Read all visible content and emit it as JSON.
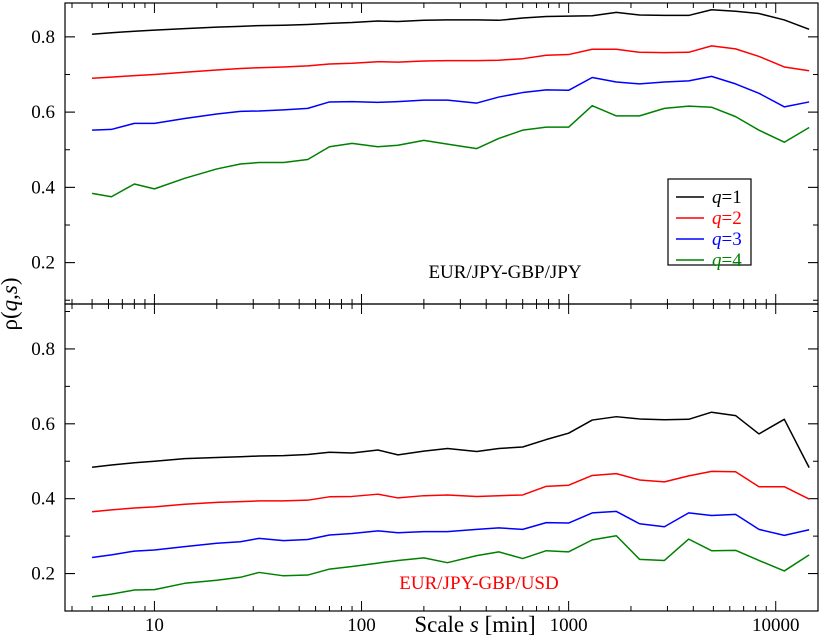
{
  "chart_data": [
    {
      "type": "line",
      "panel": "top",
      "annotation": "EUR/JPY-GBP/JPY",
      "annotation_color": "#000000",
      "xlabel_prefix": "Scale ",
      "xlabel_var": "s",
      "xlabel_suffix": " [min]",
      "ylabel_rho": "ρ(",
      "ylabel_q": "q",
      "ylabel_comma": ",",
      "ylabel_s": "s",
      "ylabel_close": ")",
      "xscale": "log",
      "xlim": [
        3.7,
        16000
      ],
      "ylim": [
        0.09,
        0.89
      ],
      "yticks": [
        0.2,
        0.4,
        0.6,
        0.8
      ],
      "ytick_labels": [
        "0.2",
        "0.4",
        "0.6",
        "0.8"
      ],
      "grid": false,
      "legend_position": "right-center",
      "x": [
        5,
        6.2,
        8,
        10,
        14,
        20,
        26,
        32,
        42,
        55,
        70,
        90,
        120,
        150,
        200,
        260,
        360,
        460,
        600,
        780,
        1000,
        1300,
        1700,
        2200,
        2900,
        3800,
        4900,
        6400,
        8300,
        11000,
        14500
      ],
      "series": [
        {
          "name_var": "q",
          "name_value": "=1",
          "color": "#000000",
          "values": [
            0.807,
            0.811,
            0.815,
            0.818,
            0.822,
            0.826,
            0.828,
            0.83,
            0.831,
            0.833,
            0.836,
            0.838,
            0.842,
            0.841,
            0.844,
            0.845,
            0.845,
            0.844,
            0.85,
            0.854,
            0.855,
            0.856,
            0.865,
            0.858,
            0.857,
            0.857,
            0.872,
            0.868,
            0.862,
            0.845,
            0.82
          ]
        },
        {
          "name_var": "q",
          "name_value": "=2",
          "color": "#ff0000",
          "values": [
            0.69,
            0.693,
            0.697,
            0.7,
            0.706,
            0.712,
            0.716,
            0.718,
            0.72,
            0.723,
            0.728,
            0.73,
            0.734,
            0.733,
            0.736,
            0.737,
            0.737,
            0.738,
            0.742,
            0.751,
            0.753,
            0.767,
            0.767,
            0.759,
            0.758,
            0.759,
            0.776,
            0.768,
            0.748,
            0.72,
            0.71
          ]
        },
        {
          "name_var": "q",
          "name_value": "=3",
          "color": "#0000ff",
          "values": [
            0.552,
            0.554,
            0.57,
            0.57,
            0.583,
            0.595,
            0.602,
            0.603,
            0.606,
            0.61,
            0.627,
            0.628,
            0.626,
            0.628,
            0.632,
            0.632,
            0.624,
            0.64,
            0.652,
            0.659,
            0.658,
            0.692,
            0.68,
            0.675,
            0.68,
            0.683,
            0.695,
            0.675,
            0.65,
            0.614,
            0.627
          ]
        },
        {
          "name_var": "q",
          "name_value": "=4",
          "color": "#008000",
          "values": [
            0.384,
            0.375,
            0.409,
            0.396,
            0.424,
            0.449,
            0.462,
            0.466,
            0.466,
            0.474,
            0.508,
            0.517,
            0.508,
            0.512,
            0.525,
            0.515,
            0.503,
            0.53,
            0.552,
            0.56,
            0.56,
            0.617,
            0.59,
            0.59,
            0.61,
            0.616,
            0.613,
            0.588,
            0.552,
            0.52,
            0.559
          ]
        }
      ]
    },
    {
      "type": "line",
      "panel": "bottom",
      "annotation": "EUR/JPY-GBP/USD",
      "annotation_color": "#ff0000",
      "xscale": "log",
      "xlim": [
        3.7,
        16000
      ],
      "ylim": [
        0.1,
        0.92
      ],
      "xticks": [
        10,
        100,
        1000,
        10000
      ],
      "xtick_labels": [
        "10",
        "100",
        "1000",
        "10000"
      ],
      "yticks": [
        0.2,
        0.4,
        0.6,
        0.8
      ],
      "ytick_labels": [
        "0.2",
        "0.4",
        "0.6",
        "0.8"
      ],
      "grid": false,
      "x": [
        5,
        6.2,
        8,
        10,
        14,
        20,
        26,
        32,
        42,
        55,
        70,
        90,
        120,
        150,
        200,
        260,
        360,
        460,
        600,
        780,
        1000,
        1300,
        1700,
        2200,
        2900,
        3800,
        4900,
        6400,
        8300,
        11000,
        14500
      ],
      "series": [
        {
          "color": "#000000",
          "values": [
            0.484,
            0.49,
            0.496,
            0.5,
            0.507,
            0.51,
            0.512,
            0.514,
            0.515,
            0.518,
            0.524,
            0.522,
            0.53,
            0.517,
            0.527,
            0.534,
            0.526,
            0.534,
            0.538,
            0.558,
            0.575,
            0.61,
            0.619,
            0.613,
            0.611,
            0.612,
            0.631,
            0.622,
            0.573,
            0.612,
            0.483
          ]
        },
        {
          "color": "#ff0000",
          "values": [
            0.365,
            0.37,
            0.375,
            0.378,
            0.385,
            0.39,
            0.392,
            0.394,
            0.394,
            0.396,
            0.405,
            0.406,
            0.412,
            0.402,
            0.408,
            0.41,
            0.406,
            0.408,
            0.41,
            0.433,
            0.436,
            0.462,
            0.467,
            0.45,
            0.445,
            0.461,
            0.473,
            0.472,
            0.432,
            0.432,
            0.399
          ]
        },
        {
          "color": "#0000ff",
          "values": [
            0.243,
            0.25,
            0.26,
            0.263,
            0.272,
            0.281,
            0.285,
            0.294,
            0.288,
            0.291,
            0.303,
            0.307,
            0.314,
            0.309,
            0.312,
            0.312,
            0.318,
            0.322,
            0.318,
            0.336,
            0.335,
            0.362,
            0.366,
            0.333,
            0.325,
            0.362,
            0.355,
            0.358,
            0.318,
            0.302,
            0.317
          ]
        },
        {
          "color": "#008000",
          "values": [
            0.138,
            0.145,
            0.156,
            0.157,
            0.174,
            0.182,
            0.19,
            0.203,
            0.194,
            0.196,
            0.212,
            0.219,
            0.228,
            0.235,
            0.242,
            0.229,
            0.248,
            0.258,
            0.24,
            0.261,
            0.258,
            0.29,
            0.301,
            0.238,
            0.235,
            0.292,
            0.261,
            0.262,
            0.235,
            0.207,
            0.25
          ]
        }
      ]
    }
  ]
}
